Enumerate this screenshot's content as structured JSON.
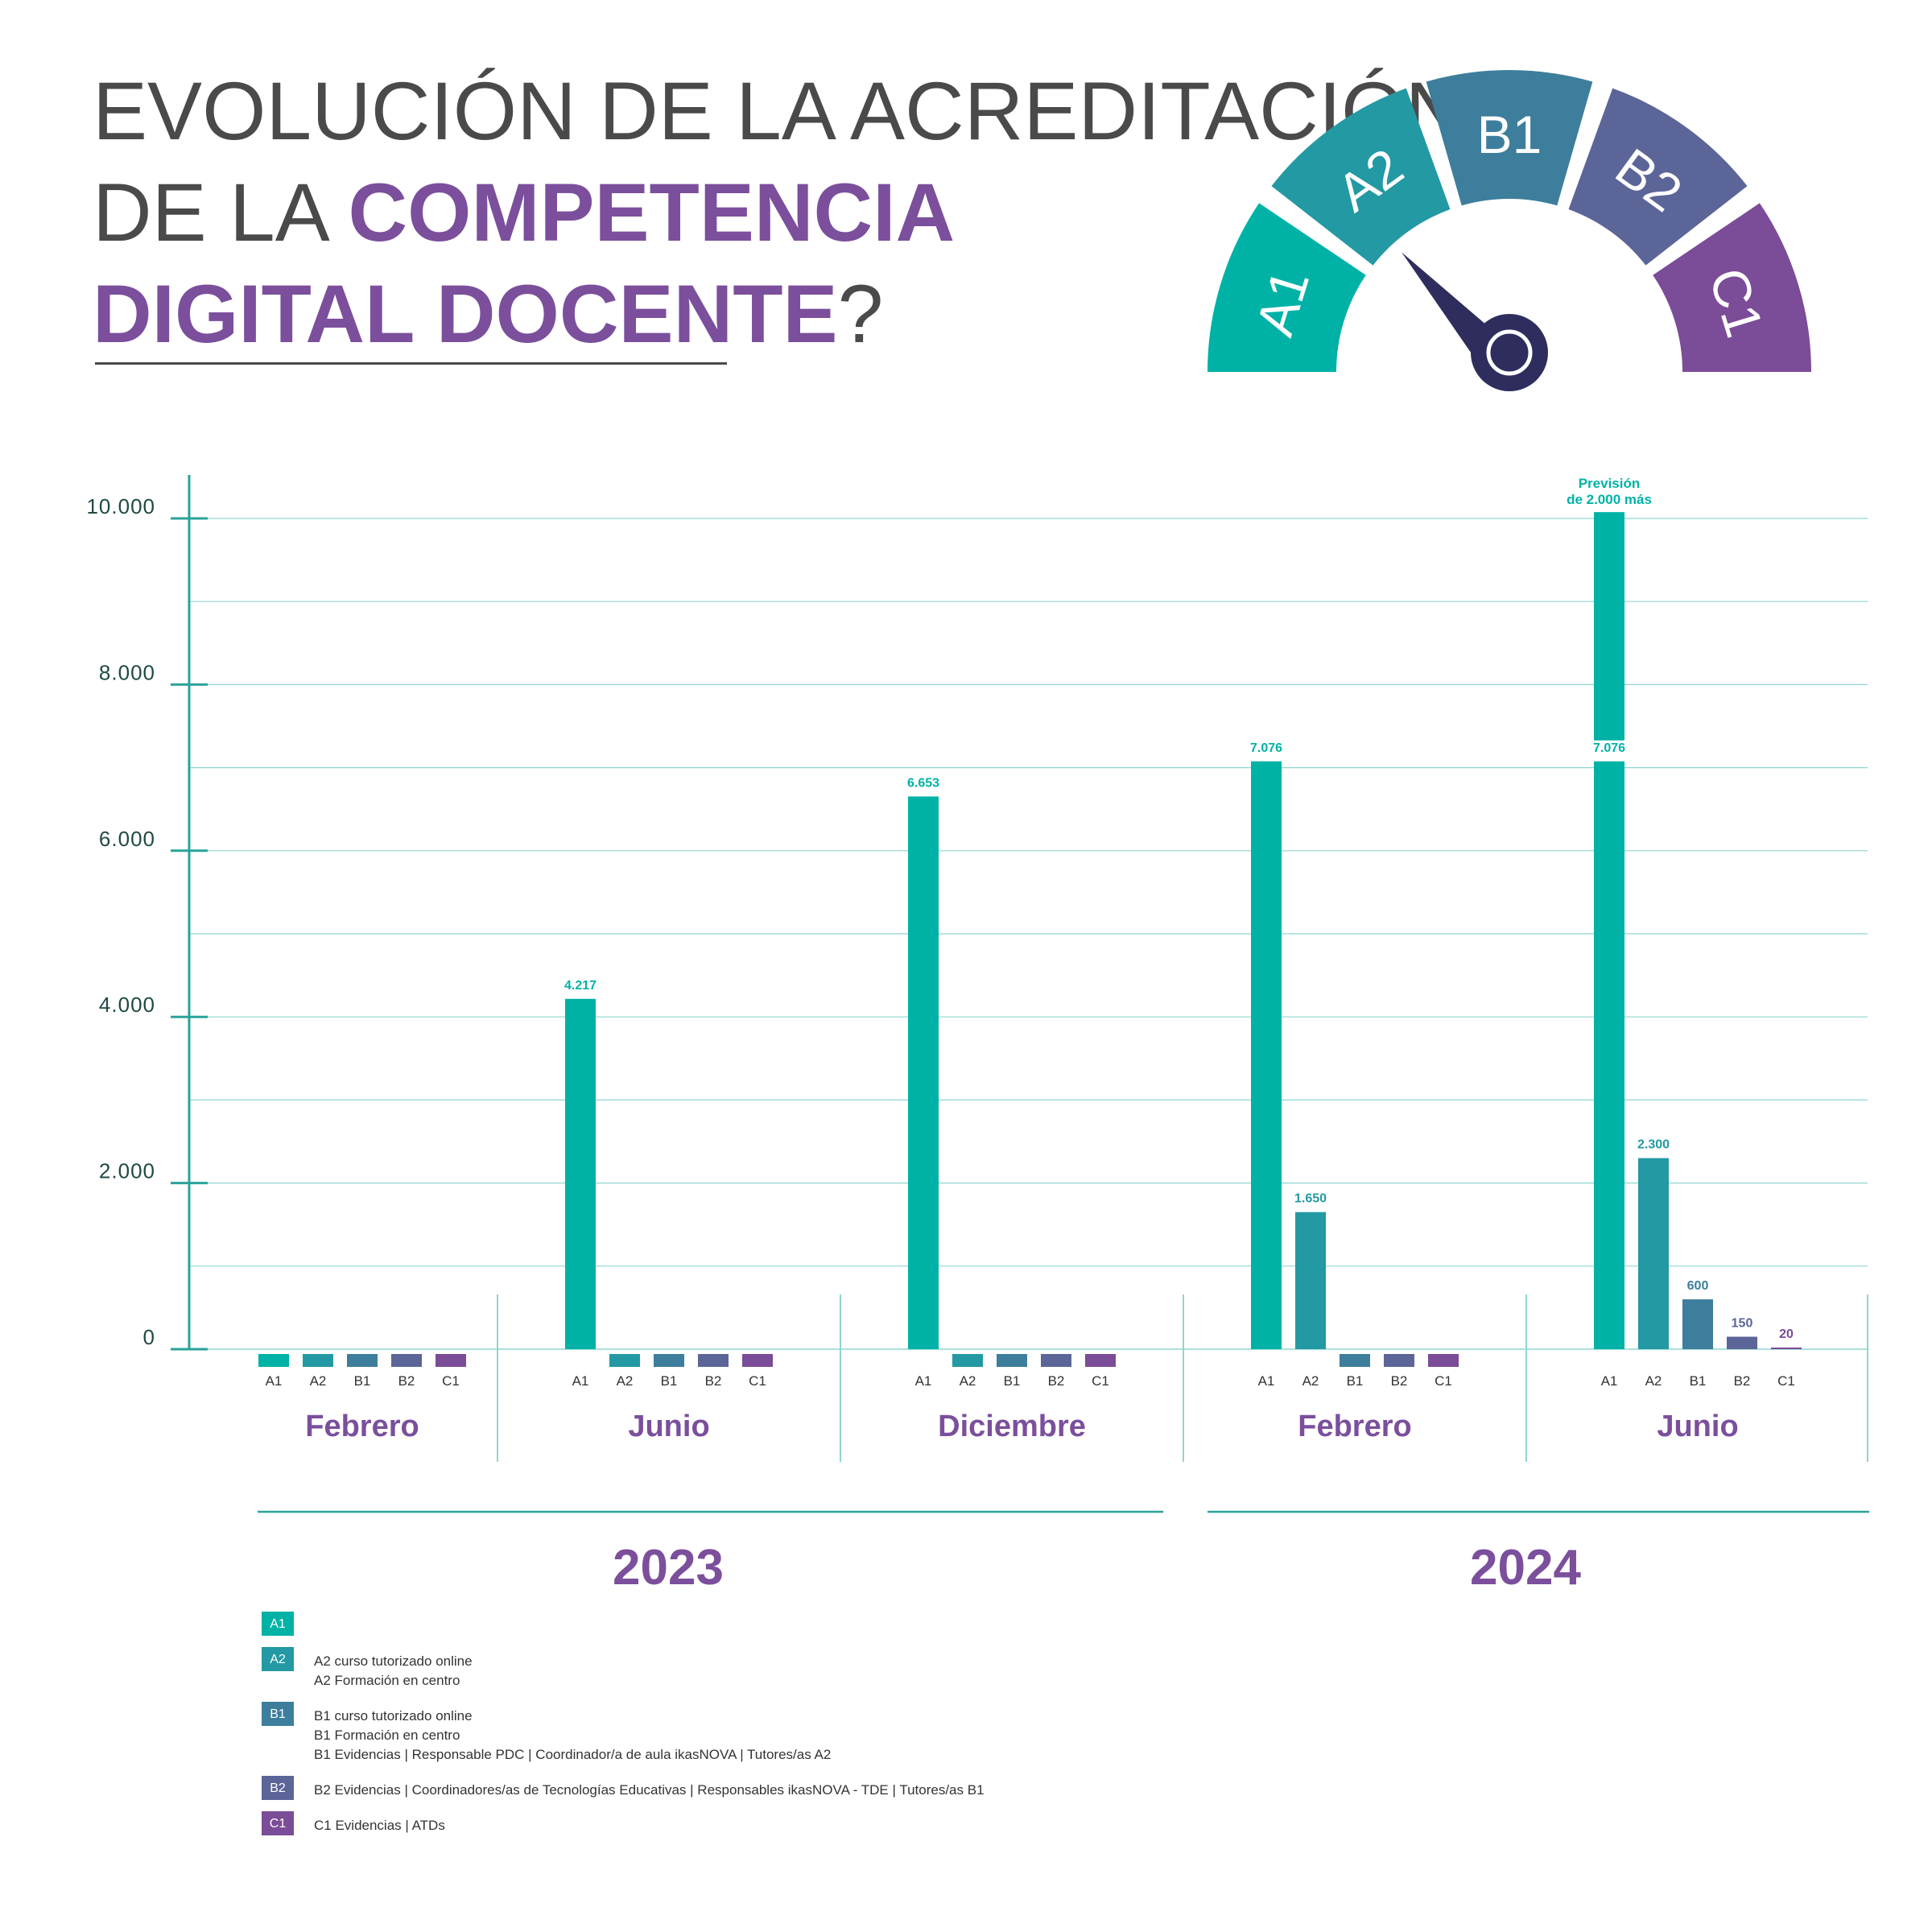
{
  "title": {
    "line1": "EVOLUCIÓN DE LA ACREDITACIÓN",
    "line2_prefix": "DE LA ",
    "line2_highlight": "COMPETENCIA",
    "line3_highlight": "DIGITAL DOCENTE",
    "line3_suffix": "?"
  },
  "gauge": {
    "segments": [
      {
        "label": "A1",
        "color": "#00b2a6"
      },
      {
        "label": "A2",
        "color": "#2399a3"
      },
      {
        "label": "B1",
        "color": "#3d7e9c"
      },
      {
        "label": "B2",
        "color": "#5c6598"
      },
      {
        "label": "C1",
        "color": "#7b4c97"
      }
    ],
    "needle_color": "#2e2d5e"
  },
  "colors": {
    "A1": "#00b2a6",
    "A2": "#2399a3",
    "B1": "#3d7e9c",
    "B2": "#5c6598",
    "C1": "#7b4c97",
    "accent": "#7b4f9c",
    "axis": "#2aa39a",
    "grid": "#8fd6cf",
    "tick_text": "#1f4a44"
  },
  "chart_data": {
    "type": "bar",
    "levels": [
      "A1",
      "A2",
      "B1",
      "B2",
      "C1"
    ],
    "y_ticks": [
      "0",
      "2.000",
      "4.000",
      "6.000",
      "8.000",
      "10.000"
    ],
    "ylim": [
      0,
      10000
    ],
    "grid": true,
    "groups": [
      {
        "month": "Febrero",
        "year": "2023",
        "values": [
          0,
          0,
          0,
          0,
          0
        ],
        "labels": [
          "",
          "",
          "",
          "",
          ""
        ]
      },
      {
        "month": "Junio",
        "year": "2023",
        "values": [
          4217,
          0,
          0,
          0,
          0
        ],
        "labels": [
          "4.217",
          "",
          "",
          "",
          ""
        ]
      },
      {
        "month": "Diciembre",
        "year": "2023",
        "values": [
          6653,
          0,
          0,
          0,
          0
        ],
        "labels": [
          "6.653",
          "",
          "",
          "",
          ""
        ]
      },
      {
        "month": "Febrero",
        "year": "2024",
        "values": [
          7076,
          1650,
          0,
          0,
          0
        ],
        "labels": [
          "7.076",
          "1.650",
          "",
          "",
          ""
        ]
      },
      {
        "month": "Junio",
        "year": "2024",
        "values": [
          7076,
          2300,
          600,
          150,
          20
        ],
        "labels": [
          "7.076",
          "2.300",
          "600",
          "150",
          "20"
        ],
        "forecast": {
          "level": "A1",
          "extra": 2000,
          "label_line1": "Previsión",
          "label_line2": "de 2.000 más"
        }
      }
    ],
    "years": [
      "2023",
      "2024"
    ]
  },
  "legend": [
    {
      "key": "A1",
      "lines": []
    },
    {
      "key": "A2",
      "lines": [
        "A2 curso tutorizado online",
        "A2  Formación en centro"
      ]
    },
    {
      "key": "B1",
      "lines": [
        "B1 curso tutorizado online",
        "B1 Formación en centro",
        "B1 Evidencias | Responsable PDC | Coordinador/a de aula ikasNOVA | Tutores/as A2"
      ]
    },
    {
      "key": "B2",
      "lines": [
        "B2 Evidencias | Coordinadores/as de Tecnologías Educativas | Responsables ikasNOVA - TDE | Tutores/as B1"
      ]
    },
    {
      "key": "C1",
      "lines": [
        "C1 Evidencias | ATDs"
      ]
    }
  ]
}
